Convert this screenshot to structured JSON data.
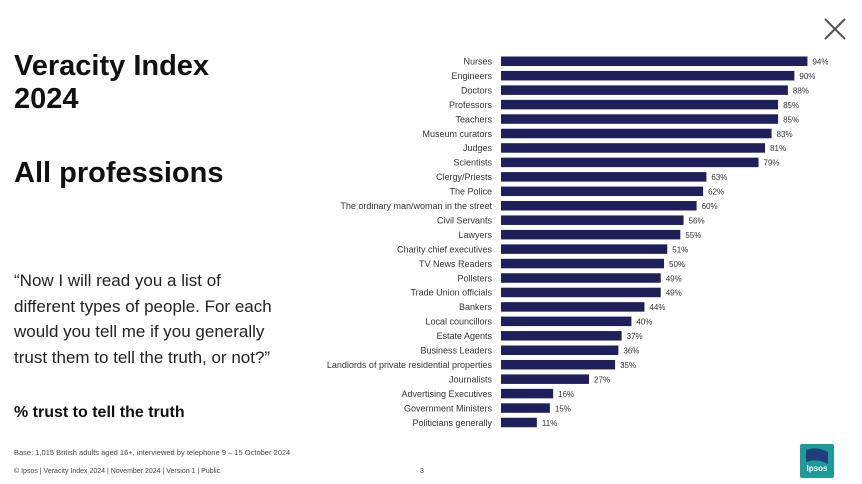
{
  "slide": {
    "title": "Veracity Index 2024",
    "subtitle": "All professions",
    "question": "“Now I will read you a list of different types of people. For each would you tell me if you generally trust them to tell the truth, or not?”",
    "measure": "% trust to tell the truth",
    "base": "Base: 1,015 British adults aged 16+, interviewed by telephone 9 – 15 October 2024",
    "footer": "© Ipsos | Veracity Index 2024 | November 2024 | Version 1 | Public",
    "page_number": "3",
    "logo_text": "Ipsos",
    "close_icon": "close-icon"
  },
  "colors": {
    "bar": "#1f1f5c",
    "logo_bg": "#1f9a9a"
  },
  "chart_data": {
    "type": "bar",
    "orientation": "horizontal",
    "categories": [
      "Nurses",
      "Engineers",
      "Doctors",
      "Professors",
      "Teachers",
      "Museum curators",
      "Judges",
      "Scientists",
      "Clergy/Priests",
      "The Police",
      "The ordinary man/woman in the street",
      "Civil Servants",
      "Lawyers",
      "Charity chief executives",
      "TV News Readers",
      "Pollsters",
      "Trade Union officials",
      "Bankers",
      "Local councillors",
      "Estate Agents",
      "Business Leaders",
      "Landlords of private residential properties",
      "Journalists",
      "Advertising Executives",
      "Government Ministers",
      "Politicians generally"
    ],
    "values": [
      94,
      90,
      88,
      85,
      85,
      83,
      81,
      79,
      63,
      62,
      60,
      56,
      55,
      51,
      50,
      49,
      49,
      44,
      40,
      37,
      36,
      35,
      27,
      16,
      15,
      11
    ],
    "value_labels": [
      "94%",
      "90%",
      "88%",
      "85%",
      "85%",
      "83%",
      "81%",
      "79%",
      "63%",
      "62%",
      "60%",
      "56%",
      "55%",
      "51%",
      "50%",
      "49%",
      "49%",
      "44%",
      "40%",
      "37%",
      "36%",
      "35%",
      "27%",
      "16%",
      "15%",
      "11%"
    ],
    "xlim": [
      0,
      100
    ]
  }
}
